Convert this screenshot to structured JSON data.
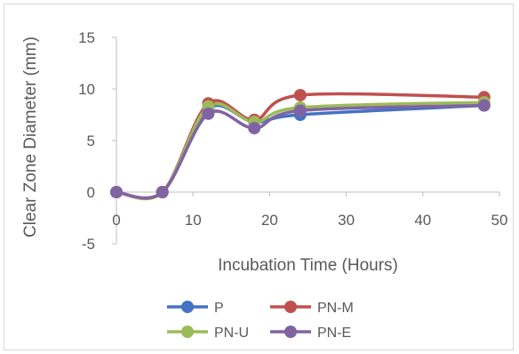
{
  "chart_data": {
    "type": "line",
    "xlabel": "Incubation Time (Hours)",
    "ylabel": "Clear Zone Diameter (mm)",
    "xlim": [
      0,
      50
    ],
    "ylim": [
      -5,
      15
    ],
    "xticks": [
      0,
      10,
      20,
      30,
      40,
      50
    ],
    "yticks": [
      -5,
      0,
      5,
      10,
      15
    ],
    "grid": false,
    "legend_position": "bottom",
    "smooth": true,
    "x": [
      0,
      6,
      12,
      18,
      24,
      48
    ],
    "series": [
      {
        "name": "P",
        "color": "#4472c4",
        "values": [
          0,
          0,
          8.1,
          6.8,
          7.5,
          8.4
        ]
      },
      {
        "name": "PN-M",
        "color": "#c0504d",
        "values": [
          0,
          0,
          8.6,
          7.0,
          9.4,
          9.2
        ]
      },
      {
        "name": "PN-U",
        "color": "#9bbb59",
        "values": [
          0,
          0,
          8.3,
          6.8,
          8.2,
          8.7
        ]
      },
      {
        "name": "PN-E",
        "color": "#8064a2",
        "values": [
          0,
          0,
          7.6,
          6.2,
          7.9,
          8.4
        ]
      }
    ]
  }
}
